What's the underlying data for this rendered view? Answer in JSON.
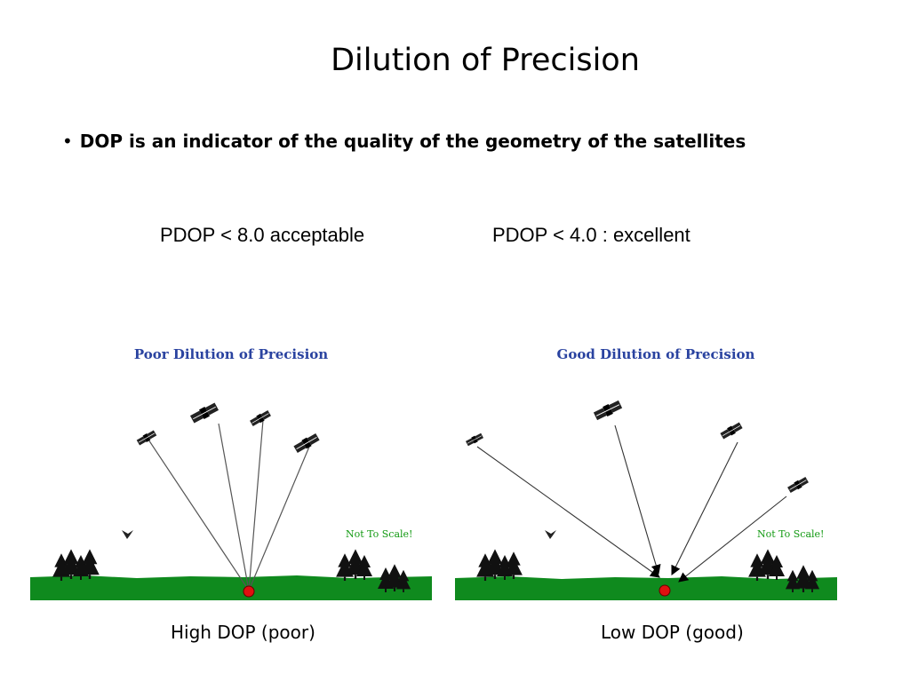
{
  "slide": {
    "title": "Dilution of Precision",
    "bullet": "DOP is an indicator of the quality of the geometry of the satellites",
    "pdop_acceptable": "PDOP < 8.0  acceptable",
    "pdop_excellent": "PDOP < 4.0 :  excellent",
    "caption_high": "High DOP (poor)",
    "caption_low": "Low DOP  (good)"
  },
  "figures": {
    "poor": {
      "title": "Poor Dilution of Precision",
      "note": "Not To Scale!"
    },
    "good": {
      "title": "Good Dilution of Precision",
      "note": "Not To Scale!"
    }
  },
  "colors": {
    "panel_title": "#2a43a0",
    "ground": "#0f8a1e",
    "note": "#119911",
    "receiver": "#e01010"
  },
  "icons": [
    "satellite-icon",
    "tree-icon",
    "bird-icon",
    "receiver-icon"
  ]
}
